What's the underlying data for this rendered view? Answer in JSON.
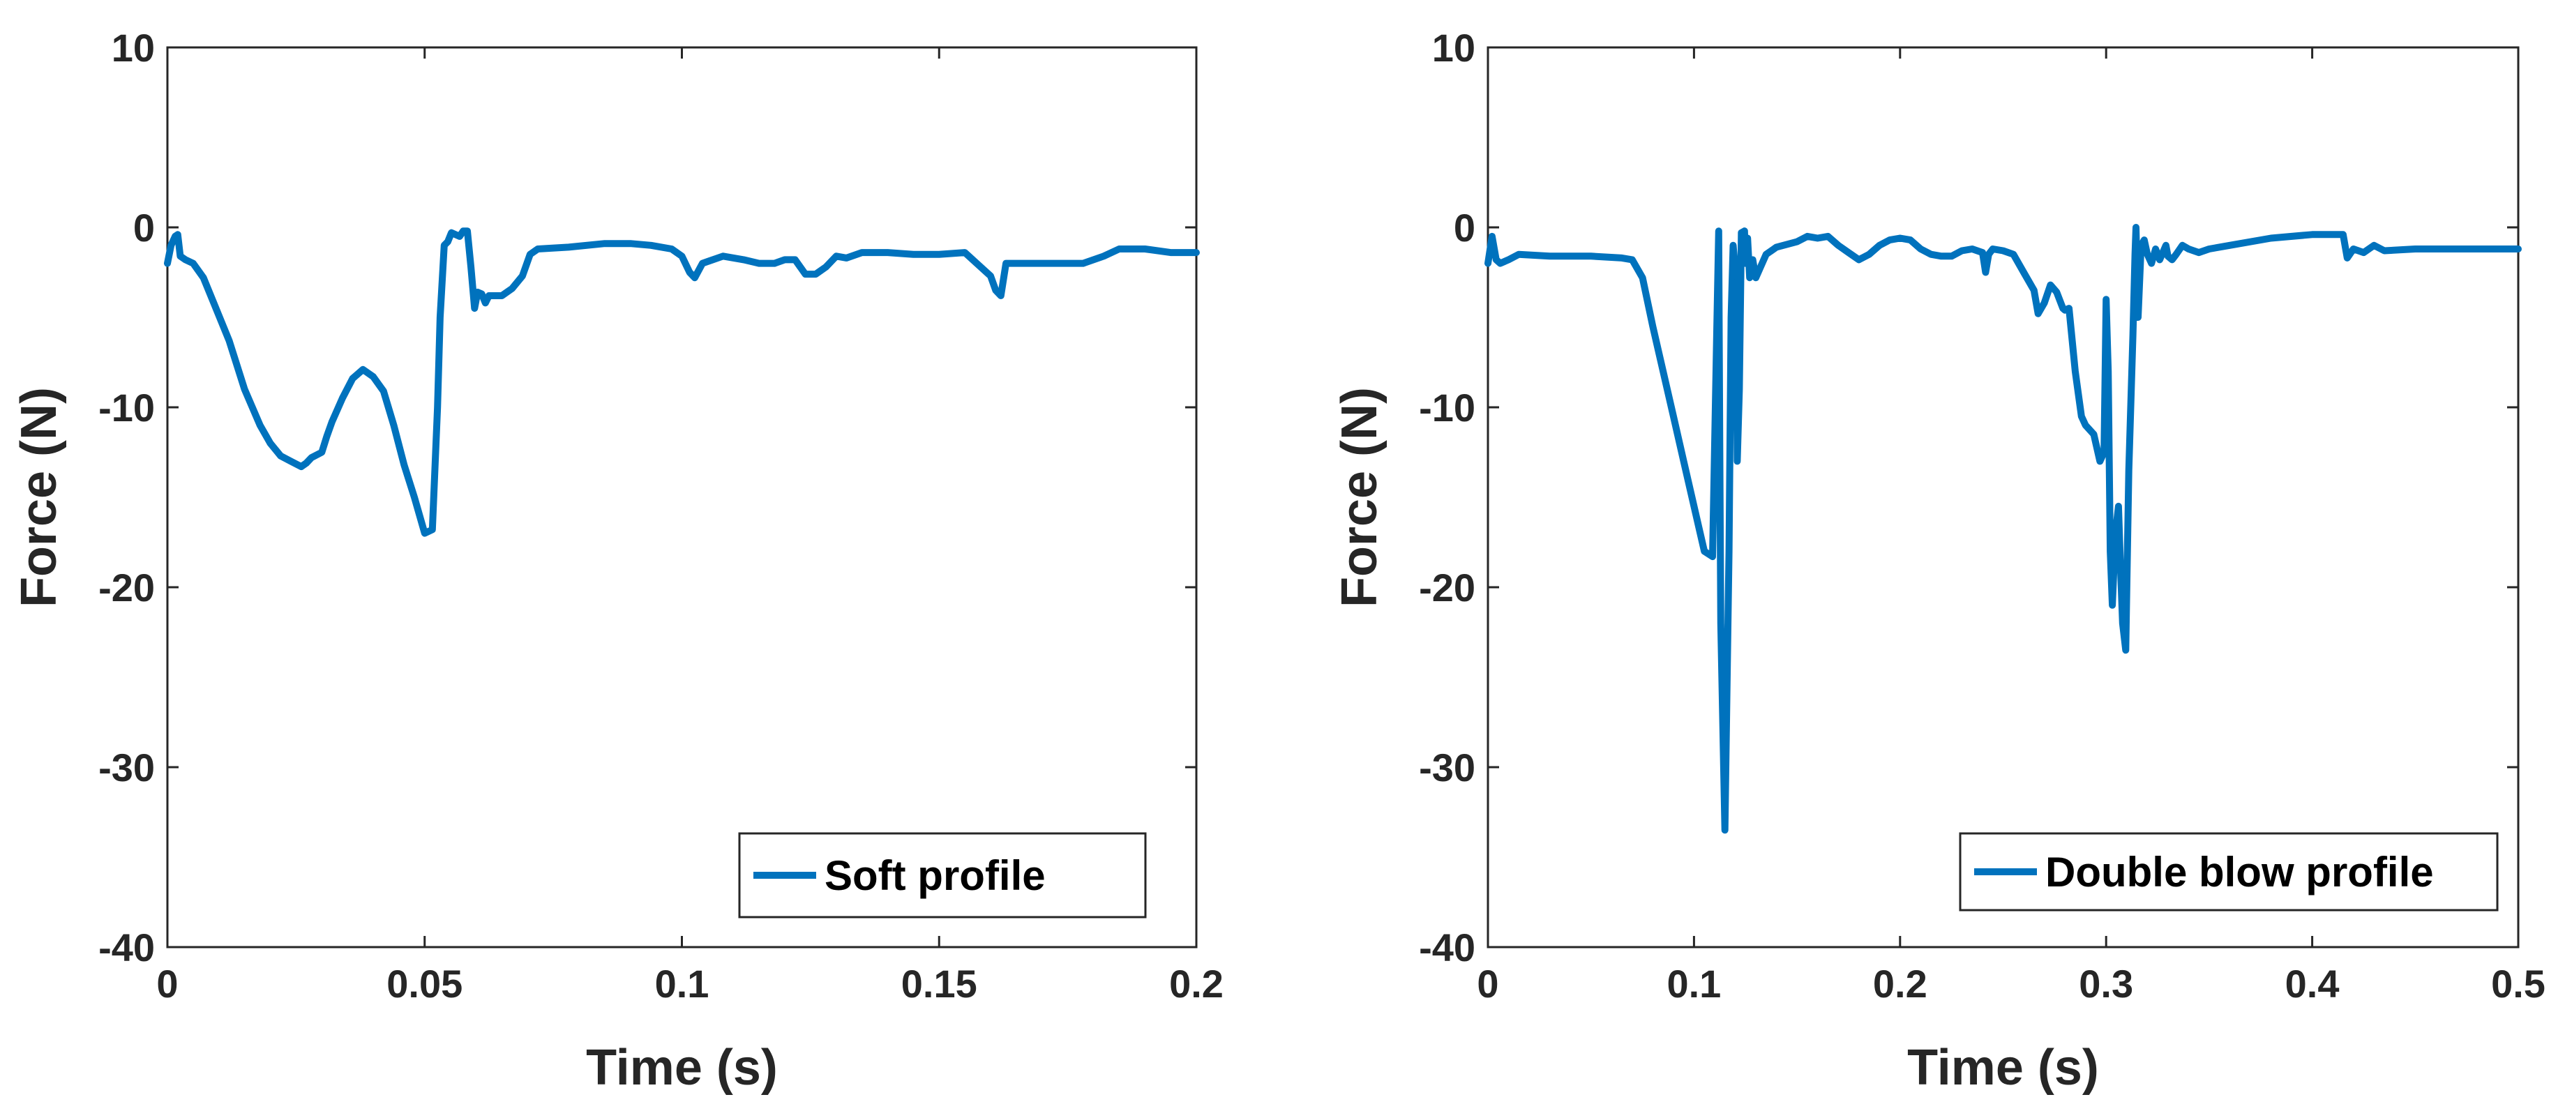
{
  "colors": {
    "series": "#0072BD",
    "axis": "#262626",
    "background": "#ffffff"
  },
  "chart_data": [
    {
      "type": "line",
      "title": "",
      "xlabel": "Time (s)",
      "ylabel": "Force (N)",
      "xlim": [
        0,
        0.2
      ],
      "ylim": [
        -40,
        10
      ],
      "xticks": [
        0,
        0.05,
        0.1,
        0.15,
        0.2
      ],
      "xtick_labels": [
        "0",
        "0.05",
        "0.1",
        "0.15",
        "0.2"
      ],
      "yticks": [
        -40,
        -30,
        -20,
        -10,
        0,
        10
      ],
      "ytick_labels": [
        "-40",
        "-30",
        "-20",
        "-10",
        "0",
        "10"
      ],
      "grid": false,
      "legend_position": "bottom-right",
      "series": [
        {
          "name": "Soft profile",
          "x": [
            0,
            0.0007,
            0.0015,
            0.002,
            0.0025,
            0.0035,
            0.005,
            0.007,
            0.009,
            0.012,
            0.015,
            0.018,
            0.02,
            0.022,
            0.024,
            0.026,
            0.027,
            0.028,
            0.03,
            0.031,
            0.032,
            0.034,
            0.036,
            0.038,
            0.04,
            0.042,
            0.044,
            0.046,
            0.048,
            0.05,
            0.0515,
            0.0525,
            0.053,
            0.0538,
            0.0545,
            0.0552,
            0.056,
            0.0568,
            0.0575,
            0.0583,
            0.059,
            0.0597,
            0.0603,
            0.0611,
            0.0618,
            0.0625,
            0.065,
            0.067,
            0.069,
            0.0705,
            0.072,
            0.078,
            0.085,
            0.09,
            0.094,
            0.098,
            0.1,
            0.1015,
            0.1025,
            0.104,
            0.108,
            0.112,
            0.115,
            0.118,
            0.12,
            0.122,
            0.124,
            0.126,
            0.128,
            0.13,
            0.132,
            0.135,
            0.14,
            0.145,
            0.15,
            0.155,
            0.16,
            0.161,
            0.162,
            0.163,
            0.166,
            0.175,
            0.178,
            0.182,
            0.185,
            0.19,
            0.195,
            0.2
          ],
          "y": [
            -2.0,
            -1.0,
            -0.5,
            -0.4,
            -1.6,
            -1.8,
            -2.0,
            -2.8,
            -4.2,
            -6.3,
            -9.0,
            -11.0,
            -12.0,
            -12.7,
            -13.0,
            -13.3,
            -13.1,
            -12.8,
            -12.5,
            -11.6,
            -10.8,
            -9.5,
            -8.4,
            -7.9,
            -8.3,
            -9.1,
            -11.0,
            -13.2,
            -15.0,
            -17.0,
            -16.8,
            -10.0,
            -5.0,
            -1.0,
            -0.8,
            -0.3,
            -0.4,
            -0.5,
            -0.2,
            -0.2,
            -2.2,
            -4.5,
            -3.6,
            -3.7,
            -4.2,
            -3.8,
            -3.8,
            -3.4,
            -2.7,
            -1.5,
            -1.2,
            -1.1,
            -0.9,
            -0.9,
            -1.0,
            -1.2,
            -1.6,
            -2.5,
            -2.8,
            -2.0,
            -1.6,
            -1.8,
            -2.0,
            -2.0,
            -1.8,
            -1.8,
            -2.6,
            -2.6,
            -2.2,
            -1.6,
            -1.7,
            -1.4,
            -1.4,
            -1.5,
            -1.5,
            -1.4,
            -2.7,
            -3.5,
            -3.8,
            -2.0,
            -2.0,
            -2.0,
            -2.0,
            -1.6,
            -1.2,
            -1.2,
            -1.4,
            -1.4
          ]
        }
      ]
    },
    {
      "type": "line",
      "title": "",
      "xlabel": "Time (s)",
      "ylabel": "Force (N)",
      "xlim": [
        0,
        0.5
      ],
      "ylim": [
        -40,
        10
      ],
      "xticks": [
        0,
        0.1,
        0.2,
        0.3,
        0.4,
        0.5
      ],
      "xtick_labels": [
        "0",
        "0.1",
        "0.2",
        "0.3",
        "0.4",
        "0.5"
      ],
      "yticks": [
        -40,
        -30,
        -20,
        -10,
        0,
        10
      ],
      "ytick_labels": [
        "-40",
        "-30",
        "-20",
        "-10",
        "0",
        "10"
      ],
      "grid": false,
      "legend_position": "bottom-right",
      "series": [
        {
          "name": "Double blow profile",
          "x": [
            0,
            0.002,
            0.004,
            0.006,
            0.01,
            0.015,
            0.03,
            0.05,
            0.065,
            0.07,
            0.075,
            0.08,
            0.085,
            0.09,
            0.095,
            0.1,
            0.105,
            0.109,
            0.111,
            0.112,
            0.1125,
            0.113,
            0.115,
            0.117,
            0.118,
            0.119,
            0.1205,
            0.121,
            0.122,
            0.123,
            0.1245,
            0.125,
            0.126,
            0.127,
            0.1285,
            0.13,
            0.135,
            0.14,
            0.15,
            0.155,
            0.16,
            0.165,
            0.17,
            0.175,
            0.18,
            0.185,
            0.19,
            0.195,
            0.2,
            0.205,
            0.21,
            0.215,
            0.22,
            0.225,
            0.23,
            0.235,
            0.24,
            0.2415,
            0.243,
            0.245,
            0.25,
            0.255,
            0.26,
            0.265,
            0.267,
            0.27,
            0.273,
            0.276,
            0.279,
            0.28,
            0.282,
            0.285,
            0.288,
            0.29,
            0.294,
            0.297,
            0.299,
            0.3,
            0.301,
            0.302,
            0.303,
            0.3045,
            0.306,
            0.307,
            0.308,
            0.3095,
            0.311,
            0.313,
            0.314,
            0.3145,
            0.3155,
            0.317,
            0.3185,
            0.32,
            0.322,
            0.324,
            0.326,
            0.329,
            0.33,
            0.332,
            0.334,
            0.337,
            0.34,
            0.345,
            0.35,
            0.36,
            0.38,
            0.4,
            0.415,
            0.417,
            0.42,
            0.425,
            0.43,
            0.435,
            0.45,
            0.47,
            0.5
          ],
          "y": [
            -2.0,
            -0.5,
            -1.8,
            -2.0,
            -1.8,
            -1.5,
            -1.6,
            -1.6,
            -1.7,
            -1.8,
            -2.8,
            -5.5,
            -8.0,
            -10.5,
            -13.0,
            -15.5,
            -18.0,
            -18.3,
            -6.0,
            -0.2,
            -12.0,
            -22.0,
            -33.5,
            -18.0,
            -5.0,
            -1.0,
            -3.0,
            -13.0,
            -9.0,
            -0.3,
            -0.2,
            -2.0,
            -0.6,
            -2.8,
            -1.8,
            -2.8,
            -1.5,
            -1.1,
            -0.8,
            -0.5,
            -0.6,
            -0.5,
            -1.0,
            -1.4,
            -1.8,
            -1.5,
            -1.0,
            -0.7,
            -0.6,
            -0.7,
            -1.2,
            -1.5,
            -1.6,
            -1.6,
            -1.3,
            -1.2,
            -1.4,
            -2.5,
            -1.5,
            -1.2,
            -1.3,
            -1.5,
            -2.5,
            -3.5,
            -4.8,
            -4.2,
            -3.2,
            -3.6,
            -4.5,
            -4.6,
            -4.5,
            -8.0,
            -10.5,
            -11.0,
            -11.5,
            -13.0,
            -12.5,
            -4.0,
            -8.0,
            -18.0,
            -21.0,
            -17.0,
            -15.5,
            -19.0,
            -22.0,
            -23.5,
            -13.5,
            -6.0,
            -1.5,
            0.0,
            -5.0,
            -1.0,
            -0.7,
            -1.5,
            -2.0,
            -1.2,
            -1.8,
            -1.0,
            -1.6,
            -1.8,
            -1.5,
            -1.0,
            -1.2,
            -1.4,
            -1.2,
            -1.0,
            -0.6,
            -0.4,
            -0.4,
            -1.7,
            -1.2,
            -1.4,
            -1.0,
            -1.3,
            -1.2,
            -1.2,
            -1.2
          ]
        }
      ]
    }
  ]
}
